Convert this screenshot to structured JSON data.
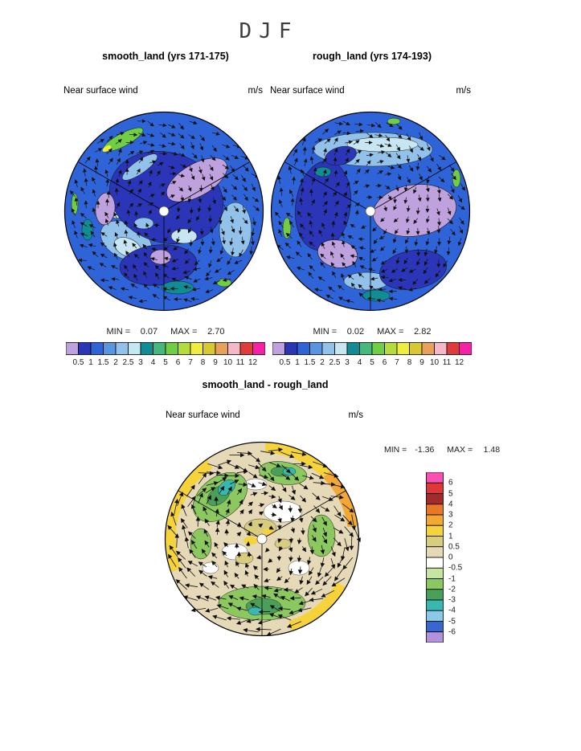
{
  "season": "DJF",
  "panels": {
    "smooth": {
      "title": "smooth_land (yrs 171-175)",
      "field_label": "Near surface wind",
      "units": "m/s",
      "min_label": "MIN =",
      "min_value": "0.07",
      "max_label": "MAX =",
      "max_value": "2.70"
    },
    "rough": {
      "title": "rough_land (yrs 174-193)",
      "field_label": "Near surface wind",
      "units": "m/s",
      "min_label": "MIN =",
      "min_value": "0.02",
      "max_label": "MAX =",
      "max_value": "2.82"
    },
    "diff": {
      "title": "smooth_land - rough_land",
      "field_label": "Near surface wind",
      "units": "m/s",
      "min_label": "MIN =",
      "min_value": "-1.36",
      "max_label": "MAX =",
      "max_value": "1.48"
    }
  },
  "colorbars": {
    "speed": {
      "tick_labels": [
        "0.5",
        "1",
        "1.5",
        "2",
        "2.5",
        "3",
        "4",
        "5",
        "6",
        "7",
        "8",
        "9",
        "10",
        "11",
        "12"
      ],
      "colors": [
        "#BFA1DE",
        "#2A35B8",
        "#2E64D8",
        "#5A96E0",
        "#92C2EA",
        "#C8E6F2",
        "#0F8C94",
        "#46B87E",
        "#6FCE44",
        "#B4DC3C",
        "#F2EC3C",
        "#D8C832",
        "#E8A05A",
        "#F4B8C8",
        "#E03C3C",
        "#F920A8"
      ]
    },
    "diff": {
      "tick_labels": [
        "6",
        "5",
        "4",
        "3",
        "2",
        "1",
        "0.5",
        "0",
        "-0.5",
        "-1",
        "-2",
        "-3",
        "-4",
        "-5",
        "-6"
      ],
      "colors": [
        "#FA50B4",
        "#E03838",
        "#A52A2A",
        "#E87828",
        "#F2A832",
        "#F6D33A",
        "#D8CC7E",
        "#E6D9B8",
        "#FFFFFF",
        "#C4E6A0",
        "#8CC860",
        "#4AA05A",
        "#38B8B0",
        "#8CC8E8",
        "#3A66D0",
        "#B292DC"
      ]
    }
  },
  "chart_data": [
    {
      "type": "heatmap",
      "subtype": "polar_stereographic_contour_with_wind_vectors",
      "season": "DJF",
      "title": "smooth_land (yrs 171-175)",
      "variable": "Near surface wind",
      "units": "m/s",
      "min": 0.07,
      "max": 2.7,
      "contour_levels": [
        0.5,
        1,
        1.5,
        2,
        2.5,
        3,
        4,
        5,
        6,
        7,
        8,
        9,
        10,
        11,
        12
      ],
      "legend_position": "bottom",
      "overlay": "wind vector arrows"
    },
    {
      "type": "heatmap",
      "subtype": "polar_stereographic_contour_with_wind_vectors",
      "season": "DJF",
      "title": "rough_land (yrs 174-193)",
      "variable": "Near surface wind",
      "units": "m/s",
      "min": 0.02,
      "max": 2.82,
      "contour_levels": [
        0.5,
        1,
        1.5,
        2,
        2.5,
        3,
        4,
        5,
        6,
        7,
        8,
        9,
        10,
        11,
        12
      ],
      "legend_position": "bottom",
      "overlay": "wind vector arrows"
    },
    {
      "type": "heatmap",
      "subtype": "polar_stereographic_contour_with_wind_vectors",
      "season": "DJF",
      "title": "smooth_land - rough_land",
      "variable": "Near surface wind",
      "units": "m/s",
      "min": -1.36,
      "max": 1.48,
      "contour_levels": [
        6,
        5,
        4,
        3,
        2,
        1,
        0.5,
        0,
        -0.5,
        -1,
        -2,
        -3,
        -4,
        -5,
        -6
      ],
      "legend_position": "right",
      "overlay": "wind vector difference arrows"
    }
  ]
}
